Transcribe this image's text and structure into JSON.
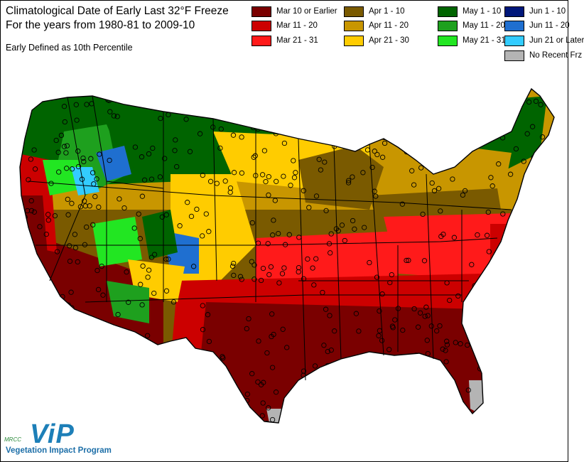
{
  "title": {
    "line1": "Climatological Date of Early Last 32°F Freeze",
    "line2": "For the years from 1980-81 to 2009-10",
    "subtitle": "Early Defined as 10th Percentile"
  },
  "legend": [
    {
      "label": "Mar 10 or Earlier",
      "color": "#7a0000"
    },
    {
      "label": "Apr 1 - 10",
      "color": "#7a5a00"
    },
    {
      "label": "May 1 - 10",
      "color": "#006400"
    },
    {
      "label": "Jun 1 - 10",
      "color": "#00177a"
    },
    {
      "label": "Mar 11 - 20",
      "color": "#cc0000"
    },
    {
      "label": "Apr 11 - 20",
      "color": "#c89600"
    },
    {
      "label": "May 11 - 20",
      "color": "#1ea01e"
    },
    {
      "label": "Jun 11 - 20",
      "color": "#1f6fd0"
    },
    {
      "label": "Mar 21 - 31",
      "color": "#ff1a1a"
    },
    {
      "label": "Apr 21 - 30",
      "color": "#ffcc00"
    },
    {
      "label": "May 21 - 31",
      "color": "#22e622"
    },
    {
      "label": "Jun 21 or Later",
      "color": "#33ccff"
    },
    {
      "label": "No Recent Frz",
      "color": "#b4b4b4"
    }
  ],
  "logo": {
    "org": "MRCC",
    "mark": "ViP",
    "program": "Vegetation Impact Program"
  }
}
